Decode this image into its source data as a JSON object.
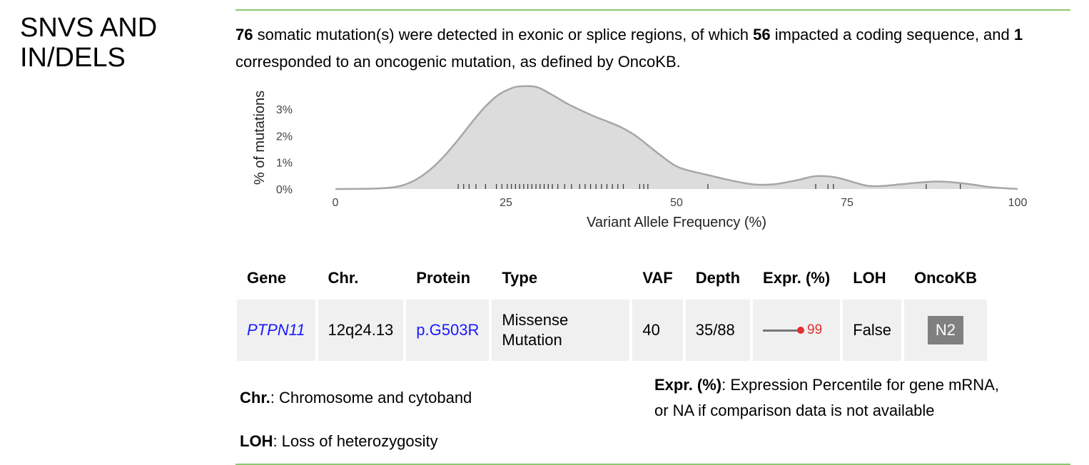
{
  "section_title": "SNVS AND IN/DELS",
  "summary": {
    "count_somatic": "76",
    "text1": " somatic mutation(s) were detected in exonic or splice regions, of which ",
    "count_coding": "56",
    "text2": " impacted a coding sequence, and ",
    "count_oncogenic": "1",
    "text3": " corresponded to an oncogenic mutation, as defined by OncoKB."
  },
  "colors": {
    "rule": "#8cc870",
    "density_fill": "#dcdcdc",
    "density_stroke": "#a6a6a6",
    "rug": "#333333",
    "table_header_bg": "#ffffff",
    "table_cell_bg": "#f0f0f0",
    "gene_link": "#1a1aff",
    "expr_line": "#777777",
    "expr_dot": "#e03030",
    "badge_bg": "#808080"
  },
  "chart_data": {
    "type": "area",
    "xlabel": "Variant Allele Frequency (%)",
    "ylabel": "% of mutations",
    "xlim": [
      0,
      100
    ],
    "ylim": [
      0,
      3.8
    ],
    "x_ticks": [
      0,
      25,
      50,
      75,
      100
    ],
    "y_ticks": [
      0,
      1,
      2,
      3
    ],
    "y_tick_labels": [
      "0%",
      "1%",
      "2%",
      "3%"
    ],
    "grid": false,
    "density": {
      "x": [
        0,
        5,
        8,
        10,
        12,
        14,
        16,
        18,
        20,
        22,
        24,
        26,
        27,
        28,
        29,
        30,
        32,
        34,
        36,
        38,
        40,
        42,
        44,
        46,
        48,
        50,
        52,
        55,
        58,
        61,
        63,
        65,
        68,
        70,
        72,
        74,
        76,
        78,
        80,
        83,
        86,
        88,
        90,
        93,
        96,
        100
      ],
      "y": [
        0,
        0.01,
        0.05,
        0.15,
        0.38,
        0.75,
        1.25,
        1.85,
        2.5,
        3.1,
        3.55,
        3.8,
        3.85,
        3.86,
        3.85,
        3.78,
        3.5,
        3.2,
        2.95,
        2.72,
        2.52,
        2.3,
        2.0,
        1.6,
        1.2,
        0.85,
        0.68,
        0.5,
        0.32,
        0.18,
        0.16,
        0.2,
        0.35,
        0.47,
        0.48,
        0.4,
        0.25,
        0.12,
        0.11,
        0.18,
        0.25,
        0.28,
        0.26,
        0.18,
        0.07,
        0
      ]
    },
    "rug": [
      18,
      18.8,
      19.6,
      20.6,
      22,
      23.6,
      24.4,
      25.2,
      25.8,
      26.4,
      27,
      27.6,
      28.2,
      28.8,
      29.4,
      30,
      30.6,
      31.2,
      31.8,
      32.6,
      33.6,
      34.6,
      35.8,
      36.6,
      37.4,
      38.2,
      39,
      39.8,
      40.6,
      41.4,
      42.2,
      44.6,
      45.2,
      45.8,
      54.6,
      70.4,
      72.2,
      73,
      86.6,
      91.6
    ]
  },
  "table": {
    "headers": [
      "Gene",
      "Chr.",
      "Protein",
      "Type",
      "VAF",
      "Depth",
      "Expr. (%)",
      "LOH",
      "OncoKB"
    ],
    "rows": [
      {
        "gene": "PTPN11",
        "chr": "12q24.13",
        "protein": "p.G503R",
        "type_line1": "Missense",
        "type_line2": "Mutation",
        "vaf": "40",
        "depth": "35/88",
        "expr": "99",
        "expr_percentile": 99,
        "loh": "False",
        "oncokb": "N2"
      }
    ]
  },
  "legend": {
    "chr_term": "Chr.",
    "chr_desc": ": Chromosome and cytoband",
    "loh_term": "LOH",
    "loh_desc": ": Loss of heterozygosity",
    "expr_term": "Expr. (%)",
    "expr_desc1": ": Expression Percentile for gene mRNA,",
    "expr_desc2": "or NA if comparison data is not available"
  }
}
